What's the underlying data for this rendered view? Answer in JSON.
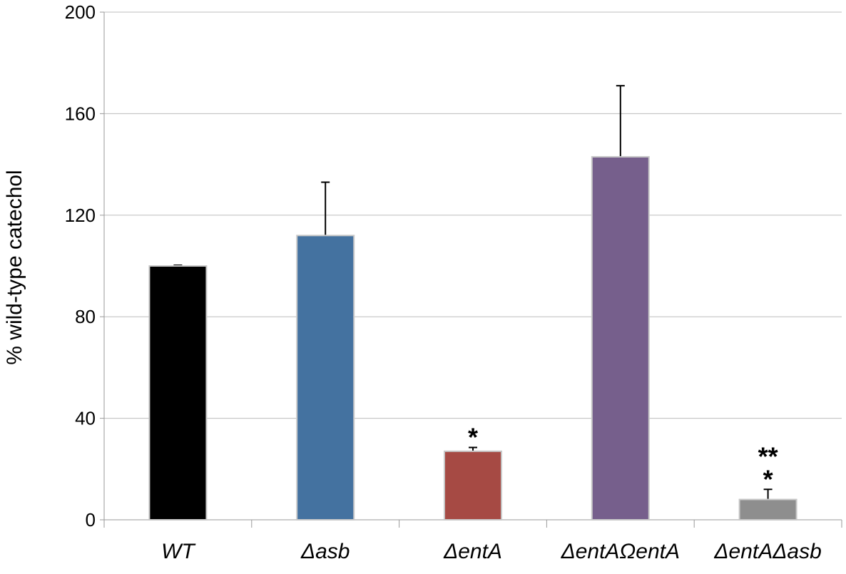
{
  "chart_data": {
    "type": "bar",
    "title": "",
    "xlabel": "",
    "ylabel": "% wild-type catechol",
    "ylim": [
      0,
      200
    ],
    "yticks": [
      0,
      40,
      80,
      120,
      160,
      200
    ],
    "grid": true,
    "legend": "none",
    "categories": [
      "WT",
      "Δasb",
      "ΔentA",
      "ΔentAΩentA",
      "ΔentAΔasb"
    ],
    "values": [
      100,
      112,
      27,
      143,
      8
    ],
    "error_bars": [
      0,
      21,
      1.5,
      28,
      4
    ],
    "colors": [
      "#000000",
      "#4472A0",
      "#A64A44",
      "#765F8C",
      "#8E8E8E"
    ],
    "annotations": [
      {
        "category": "ΔentA",
        "lines": [
          "*"
        ]
      },
      {
        "category": "ΔentAΔasb",
        "lines": [
          "**",
          "*"
        ]
      }
    ]
  }
}
